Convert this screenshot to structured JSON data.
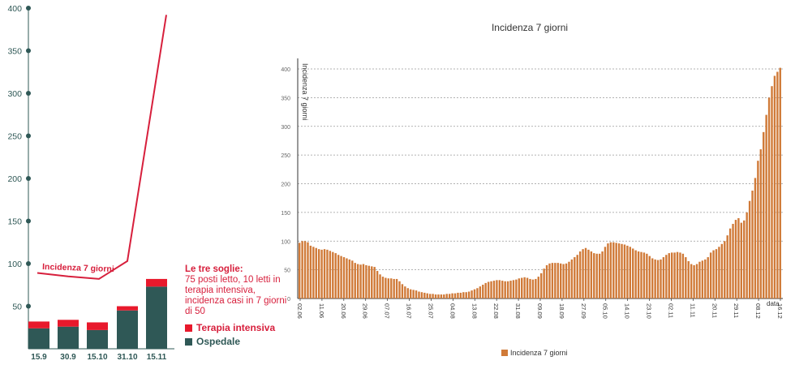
{
  "left": {
    "notes_title": "Le tre soglie:",
    "notes_text": "75 posti letto, 10 letti in terapia intensiva, incidenza casi in 7 giorni di 50",
    "legend": {
      "intensiva": "Terapia intensiva",
      "ospedale": "Ospedale"
    },
    "colors": {
      "intensiva": "#e8192c",
      "ospedale": "#2f5856",
      "line": "#d71f3c"
    }
  },
  "chart_data": [
    {
      "type": "bar",
      "title": "",
      "xlabel": "",
      "ylabel": "",
      "ylim": [
        0,
        400
      ],
      "yticks": [
        50,
        100,
        150,
        200,
        250,
        300,
        350,
        400
      ],
      "categories": [
        "15.9",
        "30.9",
        "15.10",
        "31.10",
        "15.11"
      ],
      "series": [
        {
          "name": "Ospedale",
          "values": [
            24,
            26,
            22,
            45,
            73
          ]
        },
        {
          "name": "Terapia intensiva",
          "values": [
            8,
            8,
            9,
            5,
            9
          ]
        }
      ],
      "line_series": {
        "name": "Incidenza 7 giorni",
        "values": [
          89,
          85,
          82,
          103,
          392
        ]
      }
    },
    {
      "type": "bar",
      "title": "Incidenza 7 giorni",
      "ylabel": "Incidenza 7 giorni",
      "xlabel": "data",
      "ylim": [
        0,
        420
      ],
      "yticks": [
        0,
        50,
        100,
        150,
        200,
        250,
        300,
        350,
        400
      ],
      "x_tick_labels": [
        "02.06",
        "11.06",
        "20.06",
        "29.06",
        "07.07",
        "16.07",
        "25.07",
        "04.08",
        "13.08",
        "22.08",
        "31.08",
        "09.09",
        "18.09",
        "27.09",
        "05.10",
        "14.10",
        "23.10",
        "02.11",
        "11.11",
        "20.11",
        "29.11",
        "08.12",
        "16.12"
      ],
      "legend": "Incidenza 7 giorni",
      "color": "#d07a38",
      "values": [
        97,
        100,
        100,
        98,
        92,
        90,
        88,
        86,
        85,
        86,
        85,
        83,
        81,
        79,
        76,
        74,
        72,
        70,
        68,
        66,
        62,
        60,
        59,
        60,
        58,
        57,
        56,
        55,
        48,
        42,
        38,
        36,
        35,
        35,
        34,
        34,
        30,
        25,
        21,
        18,
        16,
        15,
        14,
        12,
        11,
        10,
        9,
        8,
        8,
        7,
        7,
        7,
        7,
        8,
        8,
        9,
        9,
        10,
        10,
        11,
        11,
        12,
        14,
        16,
        18,
        21,
        24,
        27,
        29,
        30,
        31,
        32,
        32,
        31,
        30,
        30,
        31,
        32,
        33,
        35,
        36,
        37,
        36,
        34,
        33,
        34,
        38,
        44,
        52,
        58,
        61,
        62,
        62,
        62,
        61,
        60,
        61,
        64,
        68,
        72,
        76,
        82,
        86,
        88,
        85,
        82,
        79,
        78,
        78,
        82,
        90,
        96,
        98,
        98,
        97,
        96,
        95,
        94,
        92,
        90,
        87,
        84,
        82,
        81,
        80,
        78,
        74,
        70,
        68,
        67,
        68,
        72,
        76,
        79,
        80,
        80,
        81,
        80,
        78,
        72,
        65,
        60,
        58,
        60,
        64,
        66,
        68,
        72,
        80,
        84,
        86,
        90,
        95,
        100,
        110,
        122,
        130,
        137,
        140,
        132,
        136,
        150,
        170,
        188,
        210,
        240,
        260,
        290,
        320,
        350,
        370,
        388,
        395,
        402
      ]
    }
  ]
}
